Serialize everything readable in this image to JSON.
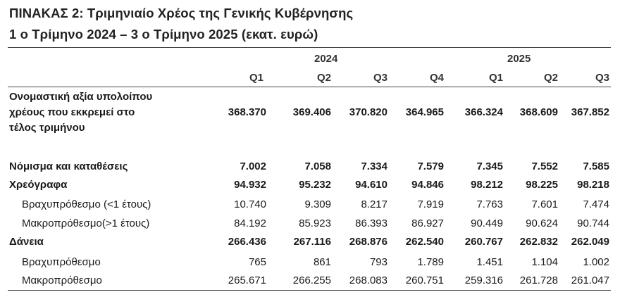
{
  "title_line1": "ΠΙΝΑΚΑΣ 2: Τριμηνιαίο Χρέος της Γενικής Κυβέρνησης",
  "title_line2": "1 ο Τρίμηνο 2024 – 3 ο Τρίμηνο 2025 (εκατ. ευρώ)",
  "years": [
    "2024",
    "2025"
  ],
  "quarters": [
    "Q1",
    "Q2",
    "Q3",
    "Q4",
    "Q1",
    "Q2",
    "Q3"
  ],
  "rows": [
    {
      "label": [
        "Ονομαστική αξία υπολοίπου",
        "χρέους που εκκρεμεί στο",
        "τέλος τριμήνου"
      ],
      "values": [
        "368.370",
        "369.406",
        "370.820",
        "364.965",
        "366.324",
        "368.609",
        "367.852"
      ]
    },
    {
      "label": "Νόμισμα και καταθέσεις",
      "values": [
        "7.002",
        "7.058",
        "7.334",
        "7.579",
        "7.345",
        "7.552",
        "7.585"
      ]
    },
    {
      "label": "Χρεόγραφα",
      "values": [
        "94.932",
        "95.232",
        "94.610",
        "94.846",
        "98.212",
        "98.225",
        "98.218"
      ]
    },
    {
      "label": "Βραχυπρόθεσμο (<1 έτους)",
      "values": [
        "10.740",
        "9.309",
        "8.217",
        "7.919",
        "7.763",
        "7.601",
        "7.474"
      ]
    },
    {
      "label": "Μακροπρόθεσμο(>1 έτους)",
      "values": [
        "84.192",
        "85.923",
        "86.393",
        "86.927",
        "90.449",
        "90.624",
        "90.744"
      ]
    },
    {
      "label": "Δάνεια",
      "values": [
        "266.436",
        "267.116",
        "268.876",
        "262.540",
        "260.767",
        "262.832",
        "262.049"
      ]
    },
    {
      "label": "Βραχυπρόθεσμο",
      "values": [
        "765",
        "861",
        "793",
        "1.789",
        "1.451",
        "1.104",
        "1.002"
      ]
    },
    {
      "label": "Μακροπρόθεσμο",
      "values": [
        "265.671",
        "266.255",
        "268.083",
        "260.751",
        "259.316",
        "261.728",
        "261.047"
      ]
    }
  ]
}
